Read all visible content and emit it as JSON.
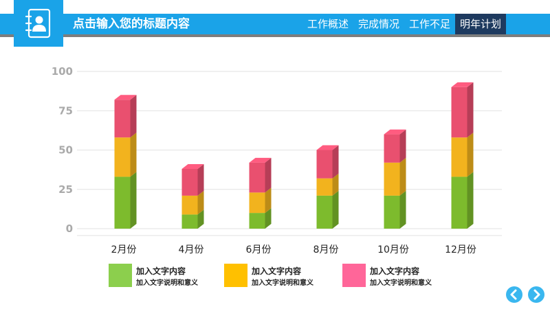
{
  "header": {
    "title": "点击输入您的标题内容",
    "tabs": [
      {
        "label": "工作概述",
        "active": false
      },
      {
        "label": "完成情况",
        "active": false
      },
      {
        "label": "工作不足",
        "active": false
      },
      {
        "label": "明年计划",
        "active": true
      }
    ],
    "logo_icon": "contact-book-icon"
  },
  "chart_data": {
    "type": "bar",
    "stacked": true,
    "categories": [
      "2月份",
      "4月份",
      "6月份",
      "8月份",
      "10月份",
      "12月份"
    ],
    "series": [
      {
        "name": "加入文字内容",
        "color": "#7dbb2d",
        "values": [
          33,
          9,
          10,
          21,
          21,
          33
        ]
      },
      {
        "name": "加入文字内容",
        "color": "#f2b31e",
        "values": [
          25,
          12,
          13,
          11,
          21,
          25
        ]
      },
      {
        "name": "加入文字内容",
        "color": "#e9506f",
        "values": [
          24,
          17,
          19,
          18,
          18,
          32
        ]
      }
    ],
    "ylim": [
      0,
      100
    ],
    "yticks": [
      "0",
      "25",
      "50",
      "75",
      "100"
    ],
    "grid": true,
    "xlabel": "",
    "ylabel": ""
  },
  "legend": [
    {
      "title": "加入文字内容",
      "subtitle": "加入文字说明和意义",
      "color": "#8ccf4d"
    },
    {
      "title": "加入文字内容",
      "subtitle": "加入文字说明和意义",
      "color": "#ffc000"
    },
    {
      "title": "加入文字内容",
      "subtitle": "加入文字说明和意义",
      "color": "#ff6699"
    }
  ],
  "nav_arrows": {
    "prev_icon": "chevron-left-icon",
    "next_icon": "chevron-right-icon"
  }
}
